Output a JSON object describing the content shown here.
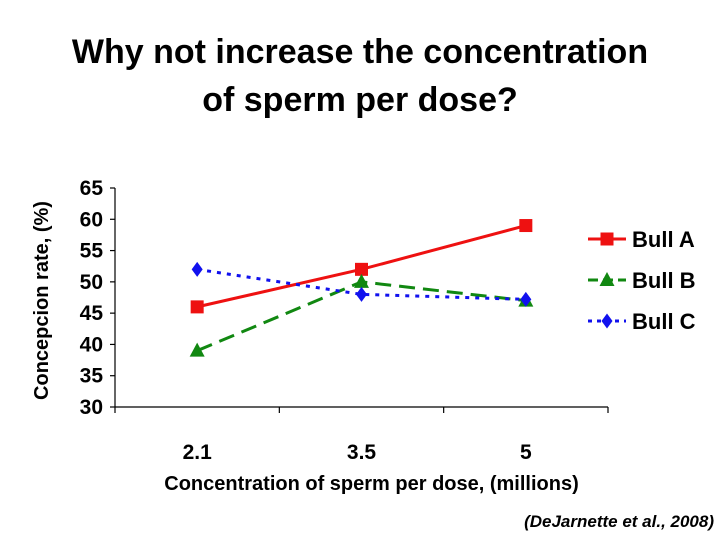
{
  "slide": {
    "title_line1": "Why not increase the concentration",
    "title_line2": "of sperm per dose?",
    "citation": "(DeJarnette et al., 2008)"
  },
  "chart_data": {
    "type": "line",
    "title": "",
    "xlabel": "Concentration of sperm per dose, (millions)",
    "ylabel": "Concepcion rate, (%)",
    "categories": [
      "2.1",
      "3.5",
      "5"
    ],
    "ylim": [
      30,
      65
    ],
    "yticks": [
      30,
      35,
      40,
      45,
      50,
      55,
      60,
      65
    ],
    "grid": false,
    "legend_position": "right",
    "series": [
      {
        "name": "Bull A",
        "values": [
          46,
          52,
          59
        ],
        "color": "#ee1111",
        "marker": "square",
        "dash": "solid"
      },
      {
        "name": "Bull B",
        "values": [
          39,
          50,
          47
        ],
        "color": "#118811",
        "marker": "triangle",
        "dash": "dashed"
      },
      {
        "name": "Bull C",
        "values": [
          52,
          48,
          47.2
        ],
        "color": "#1111ee",
        "marker": "diamond",
        "dash": "dotted"
      }
    ]
  }
}
